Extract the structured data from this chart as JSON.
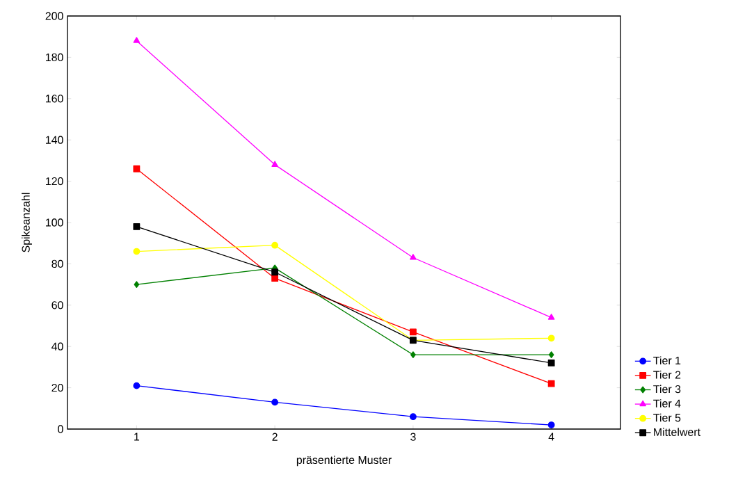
{
  "chart_data": {
    "type": "line",
    "xlabel": "präsentierte Muster",
    "ylabel": "Spikeanzahl",
    "x": [
      1,
      2,
      3,
      4
    ],
    "xlim": [
      0.5,
      4.5
    ],
    "xticks": [
      1,
      2,
      3,
      4
    ],
    "ylim": [
      0,
      200
    ],
    "yticks": [
      0,
      20,
      40,
      60,
      80,
      100,
      120,
      140,
      160,
      180,
      200
    ],
    "series": [
      {
        "name": "Tier 1",
        "color": "#0000ff",
        "marker": "circle",
        "values": [
          21,
          13,
          6,
          2
        ]
      },
      {
        "name": "Tier 2",
        "color": "#ff0000",
        "marker": "square",
        "values": [
          126,
          73,
          47,
          22
        ]
      },
      {
        "name": "Tier 3",
        "color": "#008000",
        "marker": "diamond",
        "values": [
          70,
          78,
          36,
          36
        ]
      },
      {
        "name": "Tier 4",
        "color": "#ff00ff",
        "marker": "triangle",
        "values": [
          188,
          128,
          83,
          54
        ]
      },
      {
        "name": "Tier 5",
        "color": "#ffff00",
        "marker": "circle",
        "values": [
          86,
          89,
          43,
          44
        ]
      },
      {
        "name": "Mittelwert",
        "color": "#000000",
        "marker": "square",
        "values": [
          98,
          76,
          43,
          32
        ]
      }
    ],
    "grid": false,
    "legend": "bottom right",
    "line_style": "solid"
  }
}
